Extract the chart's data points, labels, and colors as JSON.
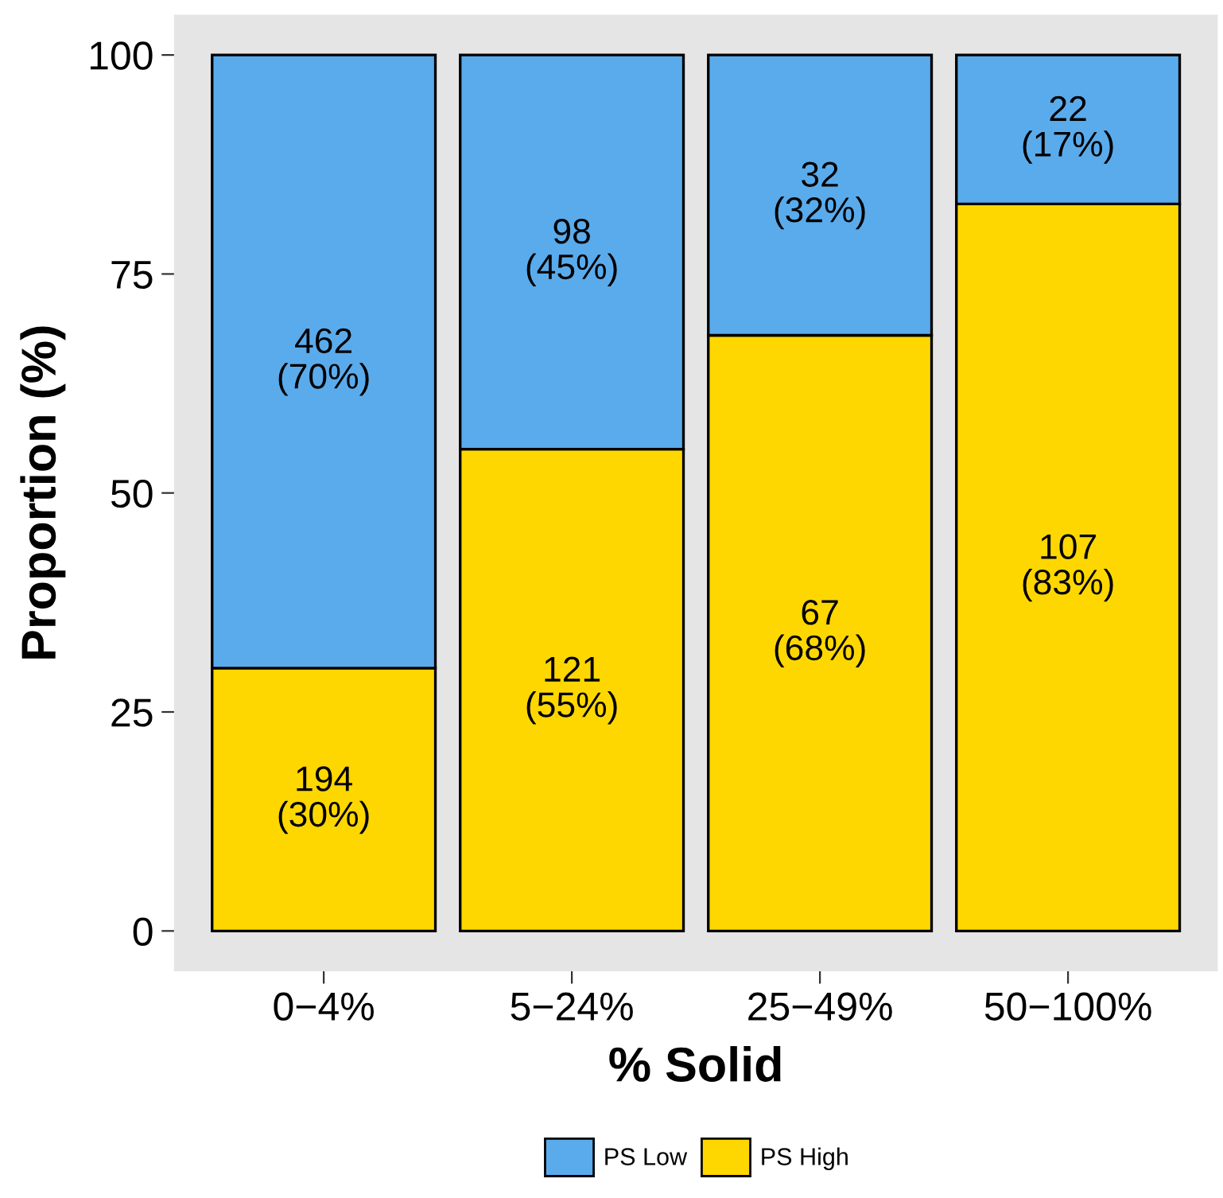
{
  "chart_data": {
    "type": "bar",
    "stacked": true,
    "xlabel": "% Solid",
    "ylabel": "Proportion (%)",
    "categories": [
      "0−4%",
      "5−24%",
      "25−49%",
      "50−100%"
    ],
    "series": [
      {
        "name": "PS High",
        "color": "#ffd700",
        "values": [
          30,
          55,
          68,
          83
        ],
        "value_labels": [
          "194\n(30%)",
          "121\n(55%)",
          "67\n(68%)",
          "107\n(83%)"
        ]
      },
      {
        "name": "PS Low",
        "color": "#5aabec",
        "values": [
          70,
          45,
          32,
          17
        ],
        "value_labels": [
          "462\n(70%)",
          "98\n(45%)",
          "32\n(32%)",
          "22\n(17%)"
        ]
      }
    ],
    "ylim": [
      -4.5,
      104.5
    ],
    "yticks": [
      0,
      25,
      50,
      75,
      100
    ],
    "grid": false,
    "legend": "bottom"
  }
}
